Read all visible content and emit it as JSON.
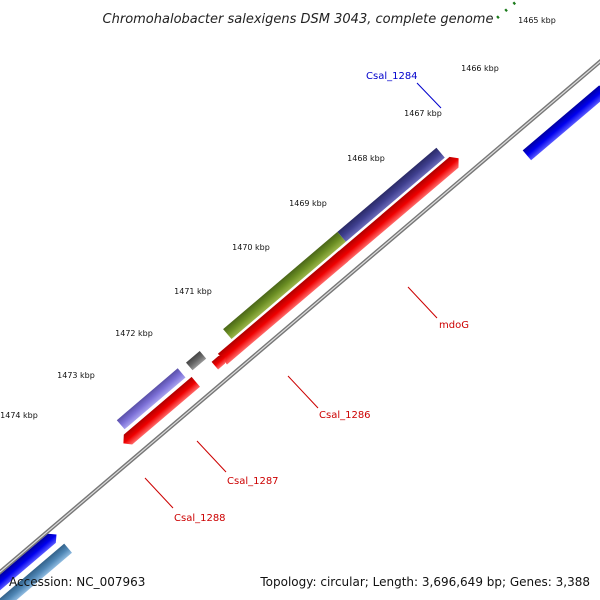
{
  "title": "Chromohalobacter salexigens DSM 3043, complete genome",
  "footer": {
    "accession": "Accession: NC_007963",
    "summary": "Topology: circular; Length: 3,696,649 bp; Genes: 3,388"
  },
  "ticks": [
    "1465 kbp",
    "1466 kbp",
    "1467 kbp",
    "1468 kbp",
    "1469 kbp",
    "1470 kbp",
    "1471 kbp",
    "1472 kbp",
    "1473 kbp",
    "1474 kbp"
  ],
  "genes": {
    "csal_1284": {
      "label": "Csal_1284",
      "color": "#0000cc"
    },
    "mdoG": {
      "label": "mdoG",
      "color": "#cc0000"
    },
    "csal_1286": {
      "label": "Csal_1286",
      "color": "#cc0000"
    },
    "csal_1287": {
      "label": "Csal_1287",
      "color": "#cc0000"
    },
    "csal_1288": {
      "label": "Csal_1288",
      "color": "#cc0000"
    }
  },
  "colors": {
    "forward_cds": "#ff0000",
    "reverse_cds": "#0000ee",
    "backbone": "#777777",
    "tick_mark": "#1a7a1a",
    "gene_olive": "#6b8e23",
    "gene_slate": "#3f3f8f",
    "gene_lightblue": "#4f86b5",
    "gene_grey": "#bbbbbb"
  }
}
